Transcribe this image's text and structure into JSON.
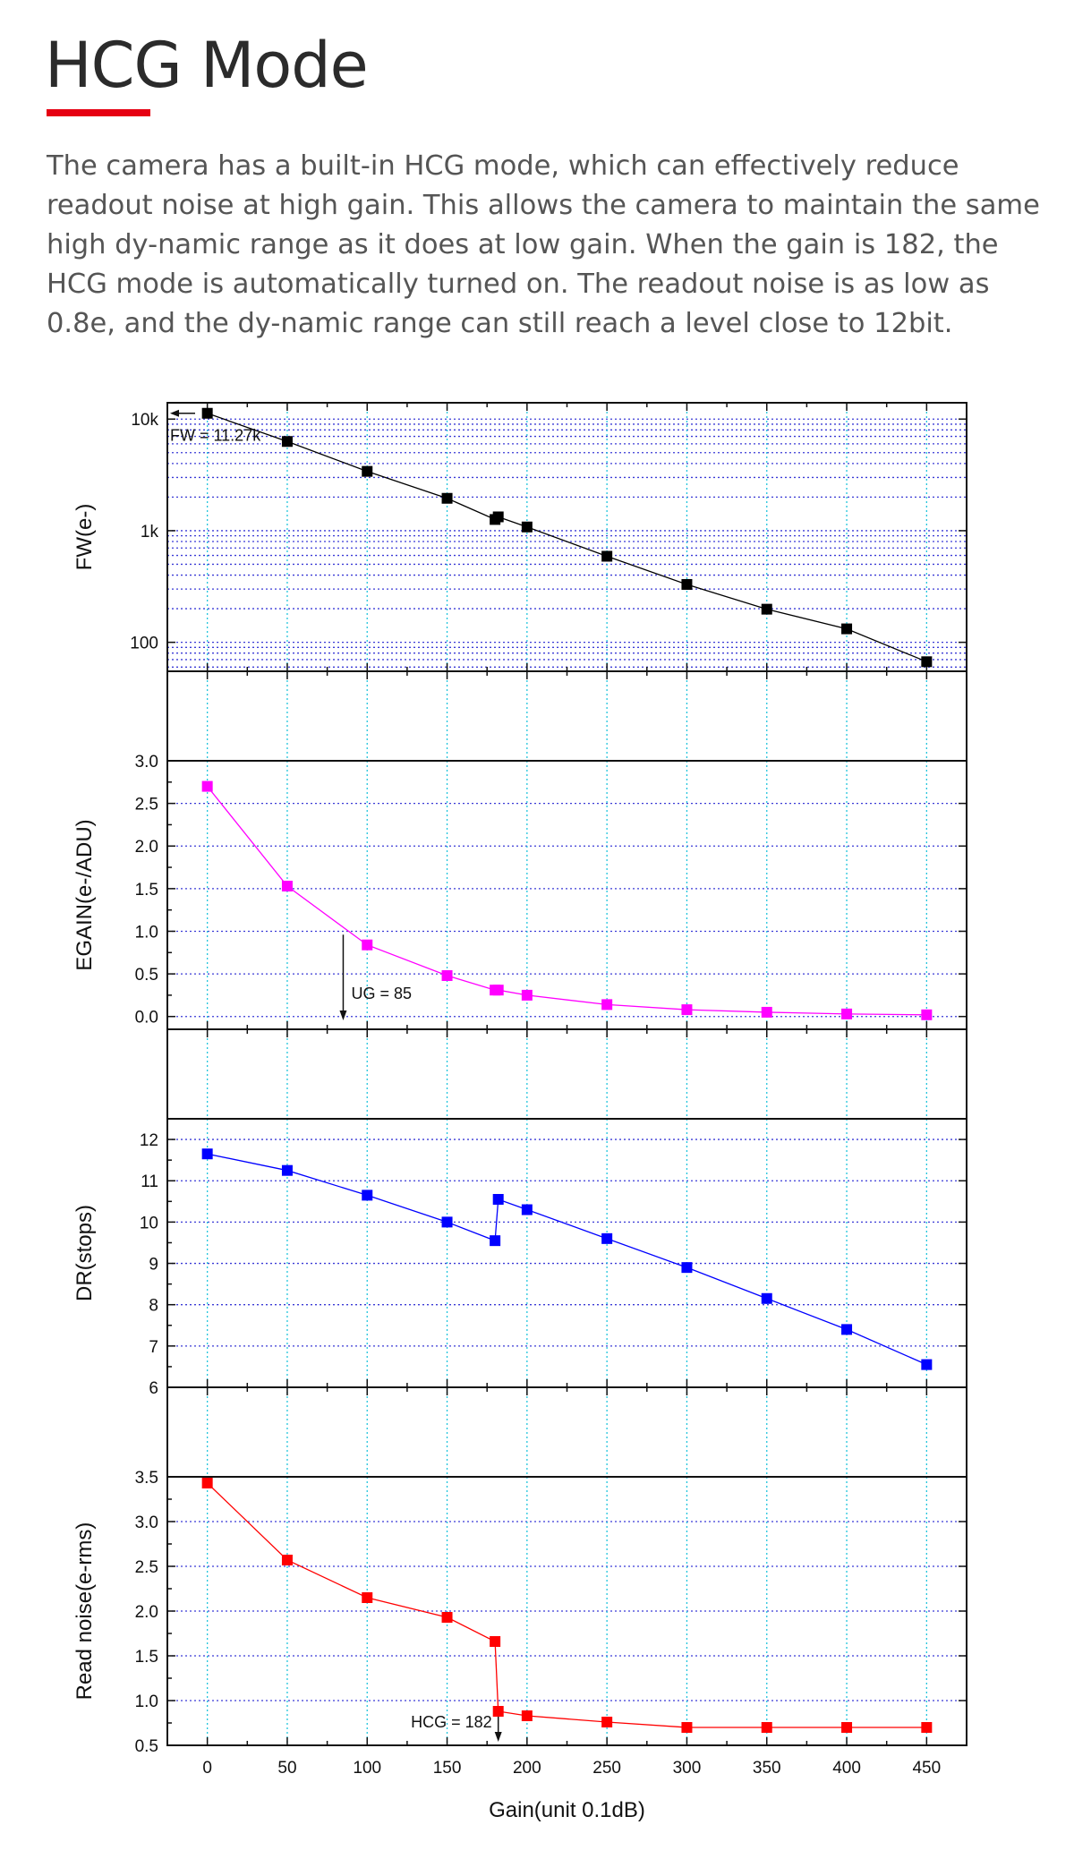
{
  "page": {
    "title": "HCG Mode",
    "description": "The camera has a built-in HCG mode, which can effectively reduce readout noise at high gain.  This allows the camera to maintain the same high dy-namic range as it does at low gain. When the gain is 182, the HCG mode is automatically turned on. The readout noise is as low as 0.8e, and the dy-namic range can still reach a level close to 12bit.",
    "accent_color": "#e60012"
  },
  "chart_data": [
    {
      "type": "line",
      "ylabel": "FW(e-)",
      "yscale": "log",
      "ylim": [
        55,
        14000
      ],
      "yticks": [
        100,
        1000,
        10000
      ],
      "ytick_labels": [
        "100",
        "1k",
        "10k"
      ],
      "color": "#000000",
      "x": [
        0,
        50,
        100,
        150,
        180,
        182,
        200,
        250,
        300,
        350,
        400,
        450
      ],
      "values": [
        11270,
        6300,
        3400,
        1950,
        1260,
        1330,
        1080,
        590,
        330,
        198,
        132,
        67
      ],
      "annotation": {
        "text": "FW = 11.27k",
        "x": 0,
        "y": 11270
      }
    },
    {
      "type": "line",
      "ylabel": "EGAIN(e-/ADU)",
      "ylim": [
        -0.15,
        3.0
      ],
      "yticks": [
        0.0,
        0.5,
        1.0,
        1.5,
        2.0,
        2.5,
        3.0
      ],
      "ytick_labels": [
        "0.0",
        "0.5",
        "1.0",
        "1.5",
        "2.0",
        "2.5",
        "3.0"
      ],
      "color": "#ff00ff",
      "x": [
        0,
        50,
        100,
        150,
        180,
        182,
        200,
        250,
        300,
        350,
        400,
        450
      ],
      "values": [
        2.7,
        1.53,
        0.84,
        0.48,
        0.31,
        0.31,
        0.25,
        0.14,
        0.08,
        0.05,
        0.03,
        0.02
      ],
      "annotation": {
        "text": "UG = 85",
        "x": 85,
        "y": 0.96
      }
    },
    {
      "type": "line",
      "ylabel": "DR(stops)",
      "ylim": [
        6,
        12.5
      ],
      "yticks": [
        6,
        7,
        8,
        9,
        10,
        11,
        12
      ],
      "ytick_labels": [
        "6",
        "7",
        "8",
        "9",
        "10",
        "11",
        "12"
      ],
      "color": "#0000ff",
      "x": [
        0,
        50,
        100,
        150,
        180,
        182,
        200,
        250,
        300,
        350,
        400,
        450
      ],
      "values": [
        11.65,
        11.25,
        10.65,
        10.0,
        9.55,
        10.55,
        10.3,
        9.6,
        8.9,
        8.15,
        7.4,
        6.55
      ]
    },
    {
      "type": "line",
      "ylabel": "Read noise(e-rms)",
      "xlabel": "Gain(unit 0.1dB)",
      "ylim": [
        0.5,
        3.5
      ],
      "yticks": [
        0.5,
        1.0,
        1.5,
        2.0,
        2.5,
        3.0,
        3.5
      ],
      "ytick_labels": [
        "0.5",
        "1.0",
        "1.5",
        "2.0",
        "2.5",
        "3.0",
        "3.5"
      ],
      "xlim": [
        -25,
        475
      ],
      "xticks": [
        0,
        50,
        100,
        150,
        200,
        250,
        300,
        350,
        400,
        450
      ],
      "xtick_labels": [
        "0",
        "50",
        "100",
        "150",
        "200",
        "250",
        "300",
        "350",
        "400",
        "450"
      ],
      "color": "#ff0000",
      "x": [
        0,
        50,
        100,
        150,
        180,
        182,
        200,
        250,
        300,
        350,
        400,
        450
      ],
      "values": [
        3.43,
        2.57,
        2.15,
        1.93,
        1.66,
        0.88,
        0.83,
        0.76,
        0.7,
        0.7,
        0.7,
        0.7
      ],
      "annotation": {
        "text": "HCG = 182",
        "x": 182,
        "y": 0.88
      }
    }
  ]
}
